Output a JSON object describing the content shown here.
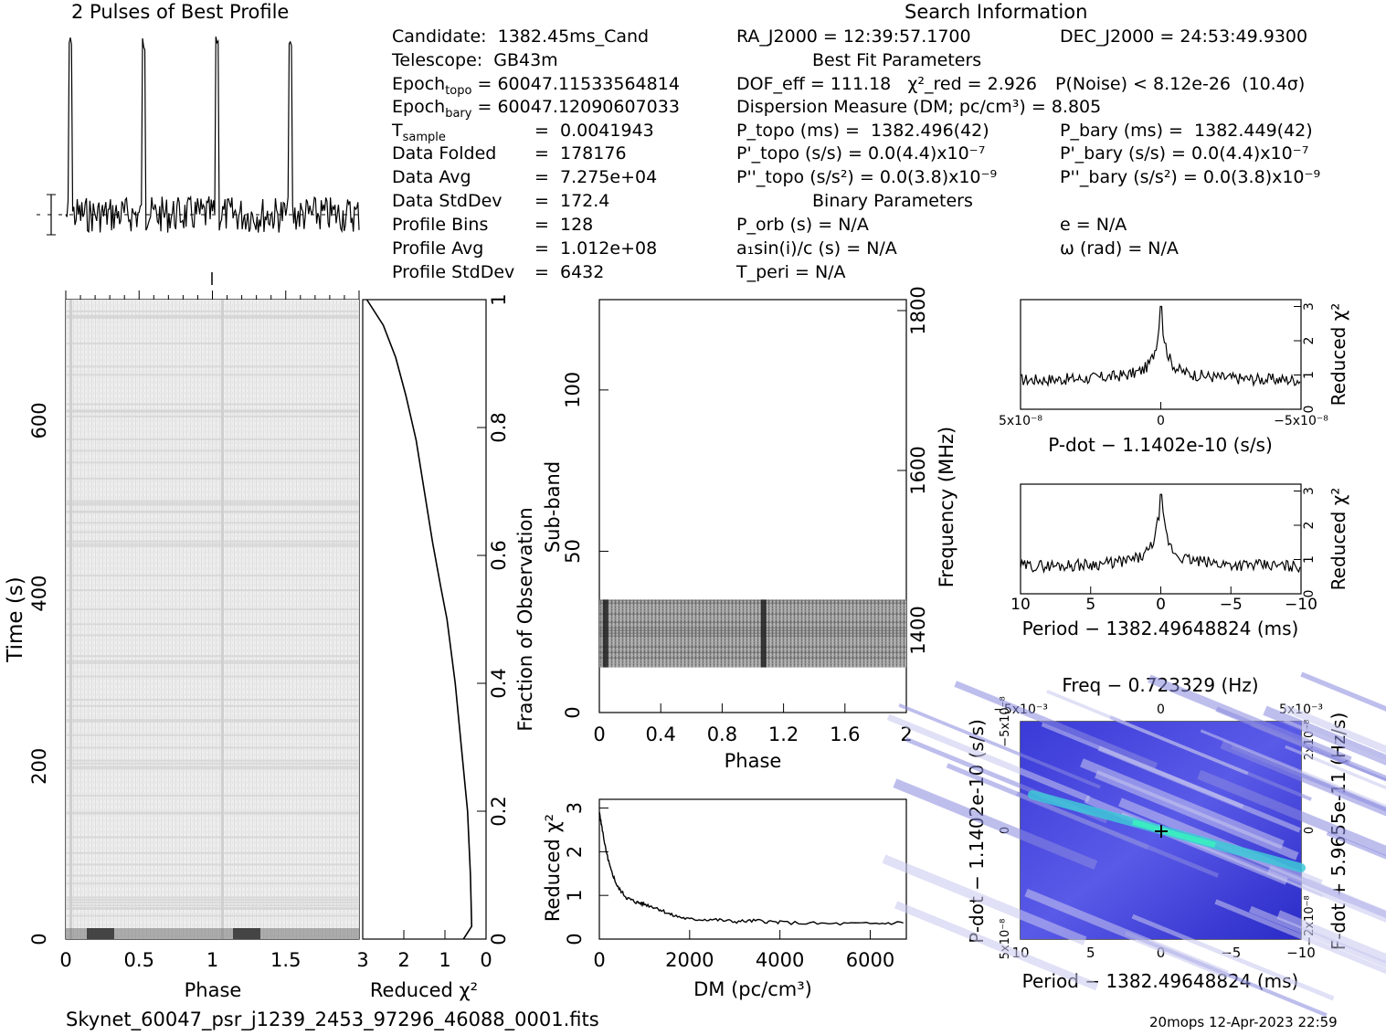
{
  "titles": {
    "profile": "2 Pulses of Best Profile",
    "search": "Search Information",
    "best_fit": "Best Fit Parameters",
    "binary": "Binary Parameters"
  },
  "info_left": [
    {
      "label": "Candidate:  1382.45ms_Cand",
      "value": ""
    },
    {
      "label": "Telescope:  GB43m",
      "value": ""
    },
    {
      "label": "Epoch_topo",
      "value": "= 60047.11533564814"
    },
    {
      "label": "Epoch_bary",
      "value": "= 60047.12090607033"
    },
    {
      "label": "T_sample",
      "value": "=  0.0041943"
    },
    {
      "label": "Data Folded",
      "value": "=  178176"
    },
    {
      "label": "Data Avg",
      "value": "=  7.275e+04"
    },
    {
      "label": "Data StdDev",
      "value": "=  172.4"
    },
    {
      "label": "Profile Bins",
      "value": "=  128"
    },
    {
      "label": "Profile Avg",
      "value": "=  1.012e+08"
    },
    {
      "label": "Profile StdDev",
      "value": "=  6432"
    }
  ],
  "info_mid": {
    "ra": "RA_J2000 = 12:39:57.1700",
    "dof": "DOF_eff = 111.18   χ²_red = 2.926",
    "dm": "Dispersion Measure (DM; pc/cm³) = 8.805",
    "ptopo": "P_topo (ms) =  1382.496(42)",
    "pdtopo": "P'_topo (s/s) = 0.0(4.4)x10⁻⁷",
    "pddtopo": "P''_topo (s/s²) = 0.0(3.8)x10⁻⁹",
    "porb": "P_orb (s) = N/A",
    "asini": "a₁sin(i)/c (s) = N/A",
    "tperi": "T_peri = N/A"
  },
  "info_right": {
    "dec": "DEC_J2000 = 24:53:49.9300",
    "pnoise": "P(Noise) < 8.12e-26  (10.4σ)",
    "pbary": "P_bary (ms) =  1382.449(42)",
    "pdbary": "P'_bary (s/s) = 0.0(4.4)x10⁻⁷",
    "pddbary": "P''_bary (s/s²) = 0.0(3.8)x10⁻⁹",
    "ecc": "e = N/A",
    "omega": "ω (rad) = N/A"
  },
  "footer": {
    "filename": "Skynet_60047_psr_j1239_2453_97296_46088_0001.fits",
    "stamp": "20mops 12-Apr-2023 22:59"
  },
  "chart_data": [
    {
      "id": "profile",
      "type": "line",
      "title": "2 Pulses of Best Profile",
      "pulse_phases": [
        0.03,
        0.53
      ],
      "x_range": [
        0,
        2
      ],
      "note": "two narrow pulses on noisy baseline"
    },
    {
      "id": "time_phase",
      "type": "heatmap",
      "xlabel": "Phase",
      "ylabel": "Time (s)",
      "xticks": [
        "0",
        "0.5",
        "1",
        "1.5"
      ],
      "yticks": [
        "0",
        "200",
        "400",
        "600"
      ],
      "xlim": [
        0,
        2
      ],
      "ylim": [
        0,
        740
      ]
    },
    {
      "id": "redchi_time",
      "type": "line",
      "xlabel": "Reduced χ²",
      "ylabel": "Fraction of Observation",
      "xticks": [
        "3",
        "2",
        "1",
        "0"
      ],
      "yticks": [
        "0",
        "0.2",
        "0.4",
        "0.6",
        "0.8",
        "1"
      ],
      "xlim": [
        3,
        0
      ],
      "ylim": [
        0,
        1
      ],
      "x": [
        0.55,
        0.35,
        0.38,
        0.45,
        0.6,
        0.75,
        0.95,
        1.1,
        1.3,
        1.5,
        1.7,
        1.95,
        2.2,
        2.5,
        2.9
      ],
      "y": [
        0,
        0.02,
        0.1,
        0.2,
        0.3,
        0.4,
        0.5,
        0.55,
        0.62,
        0.7,
        0.78,
        0.85,
        0.91,
        0.96,
        1.0
      ]
    },
    {
      "id": "subband_phase",
      "type": "heatmap",
      "xlabel": "Phase",
      "ylabel": "Sub-band",
      "y2label": "Frequency (MHz)",
      "xticks": [
        "0",
        "0.4",
        "0.8",
        "1.2",
        "1.6",
        "2"
      ],
      "yticks": [
        "0",
        "50",
        "100"
      ],
      "y2ticks": [
        "1400",
        "1600",
        "1800"
      ],
      "xlim": [
        0,
        2
      ],
      "ylim": [
        0,
        128
      ],
      "filled_band": [
        14,
        35
      ]
    },
    {
      "id": "dm_chi",
      "type": "line",
      "xlabel": "DM (pc/cm³)",
      "ylabel": "Reduced χ²",
      "xticks": [
        "0",
        "2000",
        "4000",
        "6000"
      ],
      "yticks": [
        "0",
        "1",
        "2",
        "3"
      ],
      "xlim": [
        0,
        6800
      ],
      "ylim": [
        0,
        3.2
      ],
      "x": [
        0,
        50,
        150,
        250,
        400,
        600,
        800,
        1000,
        1300,
        1600,
        2000,
        2500,
        3000,
        3500,
        4000,
        5000,
        6000,
        6800
      ],
      "y": [
        2.9,
        2.6,
        2.0,
        1.6,
        1.2,
        0.95,
        0.85,
        0.8,
        0.7,
        0.55,
        0.45,
        0.45,
        0.4,
        0.42,
        0.38,
        0.35,
        0.35,
        0.38
      ]
    },
    {
      "id": "pdot_chi",
      "type": "line",
      "xlabel": "P-dot − 1.1402e-10 (s/s)",
      "ylabel": "Reduced χ²",
      "xticks": [
        "5x10⁻⁸",
        "0",
        "−5x10⁻⁸"
      ],
      "yticks": [
        "0",
        "1",
        "2",
        "3"
      ],
      "xlim": [
        5e-08,
        -5e-08
      ],
      "ylim": [
        0,
        3.2
      ],
      "peak": [
        0,
        3.0
      ],
      "baseline": 0.85
    },
    {
      "id": "period_chi",
      "type": "line",
      "xlabel": "Period − 1382.49648824 (ms)",
      "ylabel": "Reduced χ²",
      "xticks": [
        "10",
        "5",
        "0",
        "−5",
        "−10"
      ],
      "yticks": [
        "0",
        "1",
        "2",
        "3"
      ],
      "xlim": [
        10,
        -10
      ],
      "ylim": [
        0,
        3.2
      ],
      "peak": [
        0,
        2.9
      ],
      "baseline": 0.8
    },
    {
      "id": "ppdot_plane",
      "type": "heatmap",
      "title": "Freq − 0.723329 (Hz)",
      "xlabel": "Period − 1382.49648824 (ms)",
      "ylabel": "P-dot − 1.1402e-10 (s/s)",
      "y2label": "F-dot + 5.9655e-11 (Hz/s)",
      "xticks": [
        "10",
        "5",
        "0",
        "−5",
        "−10"
      ],
      "x2ticks": [
        "−5x10⁻³",
        "0",
        "5x10⁻³"
      ],
      "yticks": [
        "5x10⁻⁸",
        "0",
        "−5x10⁻⁸"
      ],
      "y2ticks": [
        "−2x10⁻⁸",
        "0",
        "2x10⁻⁸"
      ],
      "best": [
        0,
        0
      ]
    }
  ]
}
